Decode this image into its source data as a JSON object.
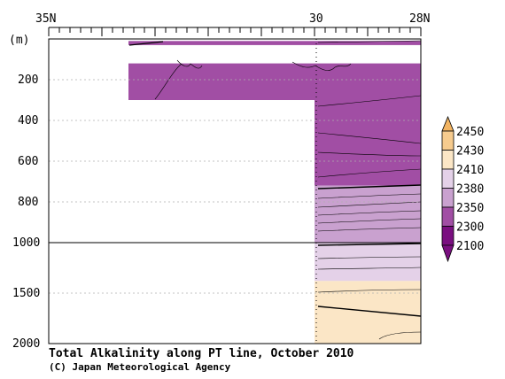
{
  "chart_data": {
    "type": "heatmap",
    "title": "Total Alkalinity along PT line, October 2010",
    "credit": "(C) Japan Meteorological Agency",
    "x_axis": {
      "ticks": [
        {
          "lat": 35,
          "label": "35N"
        },
        {
          "lat": 30,
          "label": "30"
        },
        {
          "lat": 28,
          "label": "28N"
        }
      ],
      "range": [
        35,
        28
      ]
    },
    "y_axis": {
      "unit_label": "(m)",
      "ticks": [
        {
          "depth": 200,
          "label": "200"
        },
        {
          "depth": 400,
          "label": "400"
        },
        {
          "depth": 600,
          "label": "600"
        },
        {
          "depth": 800,
          "label": "800"
        },
        {
          "depth": 1000,
          "label": "1000"
        },
        {
          "depth": 1500,
          "label": "1500"
        },
        {
          "depth": 2000,
          "label": "2000"
        }
      ],
      "range": [
        0,
        2000
      ],
      "scale_break_depth": 1000
    },
    "legend": {
      "placement": "right",
      "levels": [
        {
          "label": "2450",
          "color": "#f2b462"
        },
        {
          "label": "2430",
          "color": "#f6cb8e"
        },
        {
          "label": "2410",
          "color": "#fbe6c6"
        },
        {
          "label": "2380",
          "color": "#e4d1e8"
        },
        {
          "label": "2350",
          "color": "#c9a1cf"
        },
        {
          "label": "2300",
          "color": "#a14ea4"
        },
        {
          "label": "2100",
          "color": "#7a0f80"
        }
      ]
    },
    "filled_regions": [
      {
        "lat_from": 33.5,
        "lat_to": 28,
        "depth_from": 10,
        "depth_to": 30,
        "level": "2300"
      },
      {
        "lat_from": 33.5,
        "lat_to": 28,
        "depth_from": 120,
        "depth_to": 300,
        "level": "2300"
      },
      {
        "lat_from": 30,
        "lat_to": 28,
        "depth_from": 300,
        "depth_to": 720,
        "level": "2300"
      },
      {
        "lat_from": 30,
        "lat_to": 28,
        "depth_from": 720,
        "depth_to": 1000,
        "level": "2350"
      },
      {
        "lat_from": 30,
        "lat_to": 28,
        "depth_from": 1000,
        "depth_to": 1380,
        "level": "2380"
      },
      {
        "lat_from": 30,
        "lat_to": 28,
        "depth_from": 1380,
        "depth_to": 2000,
        "level": "2410"
      }
    ]
  }
}
